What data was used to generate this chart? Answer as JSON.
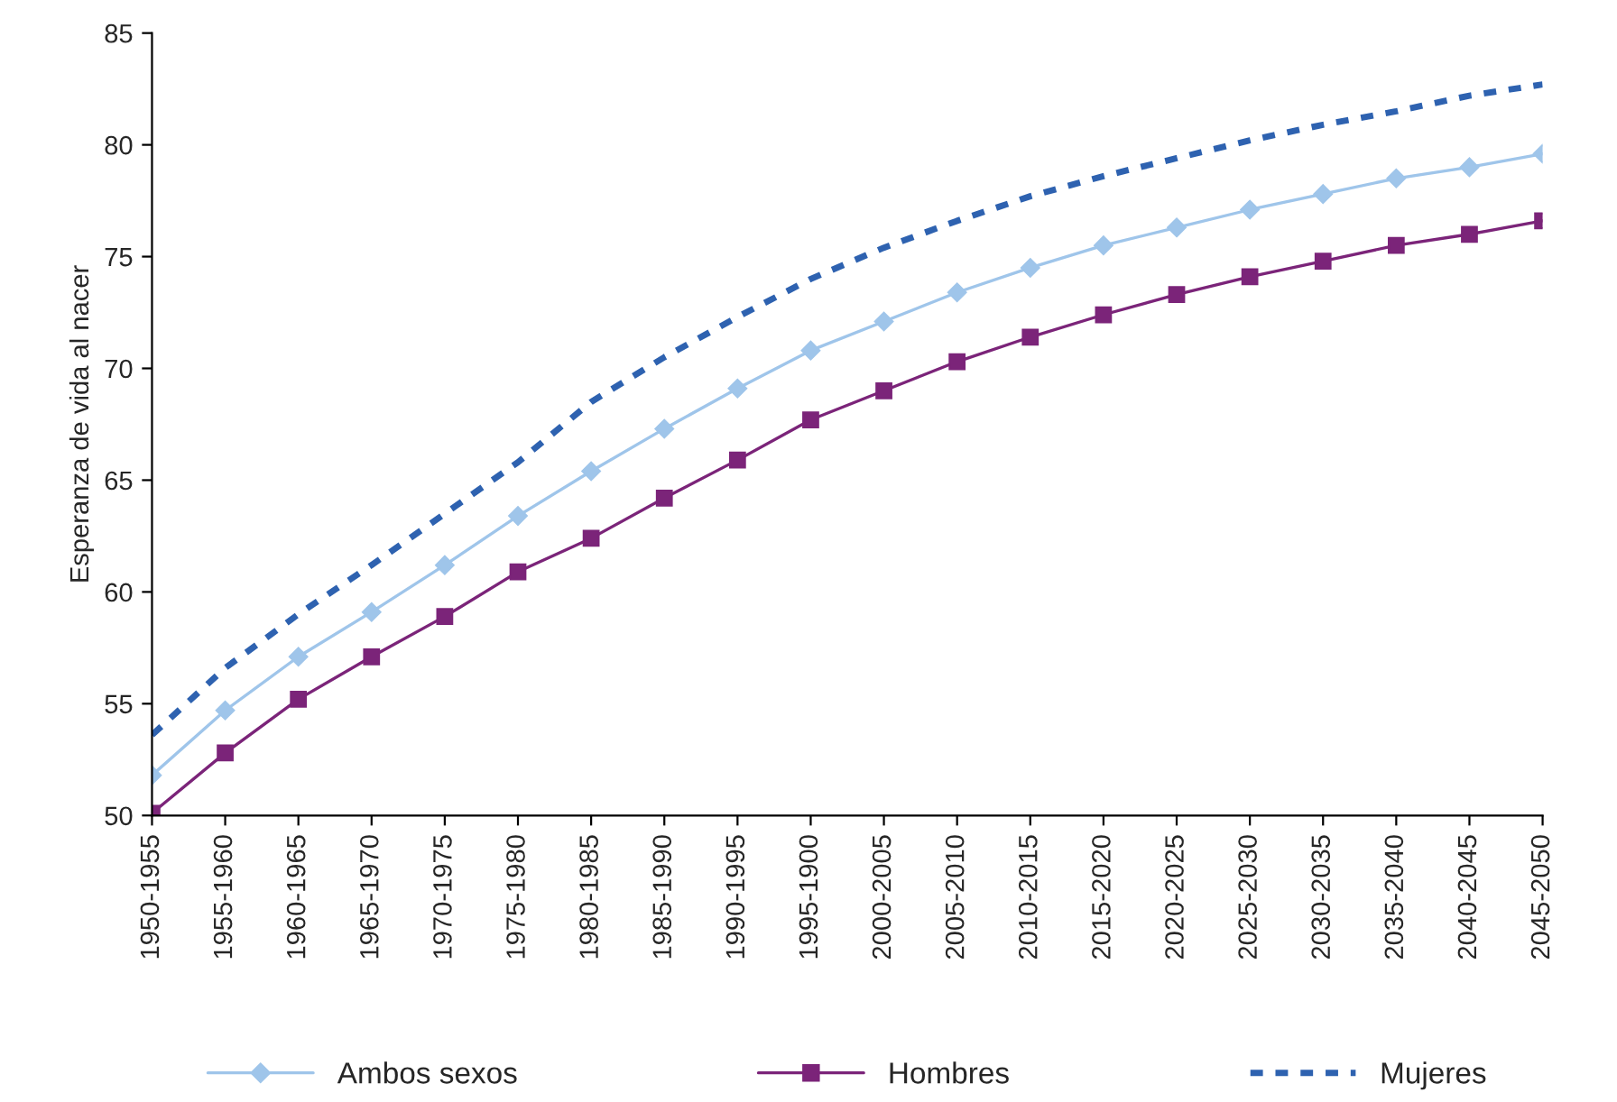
{
  "chart_data": {
    "type": "line",
    "ylabel": "Esperanza de vida al nacer",
    "categories": [
      "1950-1955",
      "1955-1960",
      "1960-1965",
      "1965-1970",
      "1970-1975",
      "1975-1980",
      "1980-1985",
      "1985-1990",
      "1990-1995",
      "1995-1900",
      "2000-2005",
      "2005-2010",
      "2010-2015",
      "2015-2020",
      "2020-2025",
      "2025-2030",
      "2030-2035",
      "2035-2040",
      "2040-2045",
      "2045-2050"
    ],
    "series": [
      {
        "name": "Ambos sexos",
        "color": "#9fc5ea",
        "marker": "diamond",
        "line_style": "solid",
        "values": [
          51.8,
          54.7,
          57.1,
          59.1,
          61.2,
          63.4,
          65.4,
          67.3,
          69.1,
          70.8,
          72.1,
          73.4,
          74.5,
          75.5,
          76.3,
          77.1,
          77.8,
          78.5,
          79.0,
          79.6
        ]
      },
      {
        "name": "Hombres",
        "color": "#7b2479",
        "marker": "square",
        "line_style": "solid",
        "values": [
          50.1,
          52.8,
          55.2,
          57.1,
          58.9,
          60.9,
          62.4,
          64.2,
          65.9,
          67.7,
          69.0,
          70.3,
          71.4,
          72.4,
          73.3,
          74.1,
          74.8,
          75.5,
          76.0,
          76.6
        ]
      },
      {
        "name": "Mujeres",
        "color": "#2e62b0",
        "marker": "none",
        "line_style": "dashed",
        "values": [
          53.6,
          56.6,
          59.0,
          61.2,
          63.5,
          65.8,
          68.5,
          70.5,
          72.3,
          74.0,
          75.4,
          76.6,
          77.7,
          78.6,
          79.4,
          80.2,
          80.9,
          81.5,
          82.2,
          82.7
        ]
      }
    ],
    "ylim": [
      50,
      85
    ],
    "yticks": [
      50,
      55,
      60,
      65,
      70,
      75,
      80,
      85
    ],
    "grid": false,
    "legend": "bottom"
  }
}
